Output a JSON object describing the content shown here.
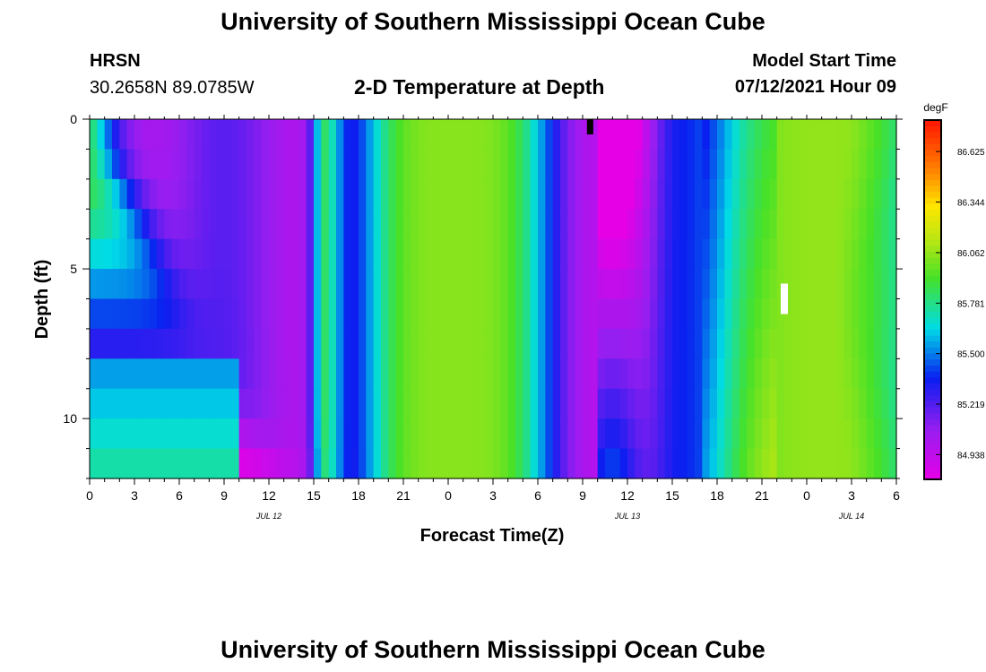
{
  "page": {
    "title": "University of Southern Mississippi Ocean Cube",
    "footer_title": "University of Southern Mississippi Ocean Cube",
    "station": "HRSN",
    "location": "30.2658N  89.0785W",
    "model_start_label": "Model Start Time",
    "model_start_value": "07/12/2021 Hour 09"
  },
  "chart_data": {
    "type": "heatmap",
    "title": "2-D Temperature at Depth",
    "xlabel": "Forecast Time(Z)",
    "ylabel": "Depth (ft)",
    "x_tick_labels": [
      "0",
      "3",
      "6",
      "9",
      "12",
      "15",
      "18",
      "21",
      "0",
      "3",
      "6",
      "9",
      "12",
      "15",
      "18",
      "21",
      "0",
      "3",
      "6"
    ],
    "x_range_hours": [
      0,
      54
    ],
    "date_labels": [
      {
        "text": "JUL 12",
        "hour": 12
      },
      {
        "text": "JUL 13",
        "hour": 36
      },
      {
        "text": "JUL 14",
        "hour": 51
      }
    ],
    "y_tick_labels": [
      "0",
      "5",
      "10"
    ],
    "y_tick_values": [
      0,
      5,
      10
    ],
    "y_range_ft": [
      0,
      12
    ],
    "colorbar": {
      "unit": "degF",
      "range": [
        84.8,
        86.8
      ],
      "tick_labels": [
        "86.625",
        "86.344",
        "86.062",
        "85.781",
        "85.500",
        "85.219",
        "84.938"
      ],
      "tick_values": [
        86.625,
        86.344,
        86.062,
        85.781,
        85.5,
        85.219,
        84.938
      ]
    },
    "markers": [
      {
        "name": "current-time-marker",
        "hour": 33.5,
        "depth_ft": 0.25,
        "color": "#000000"
      },
      {
        "name": "max-temp-marker",
        "hour": 46.5,
        "depth_ft": 6,
        "color": "#ffffff"
      }
    ]
  }
}
